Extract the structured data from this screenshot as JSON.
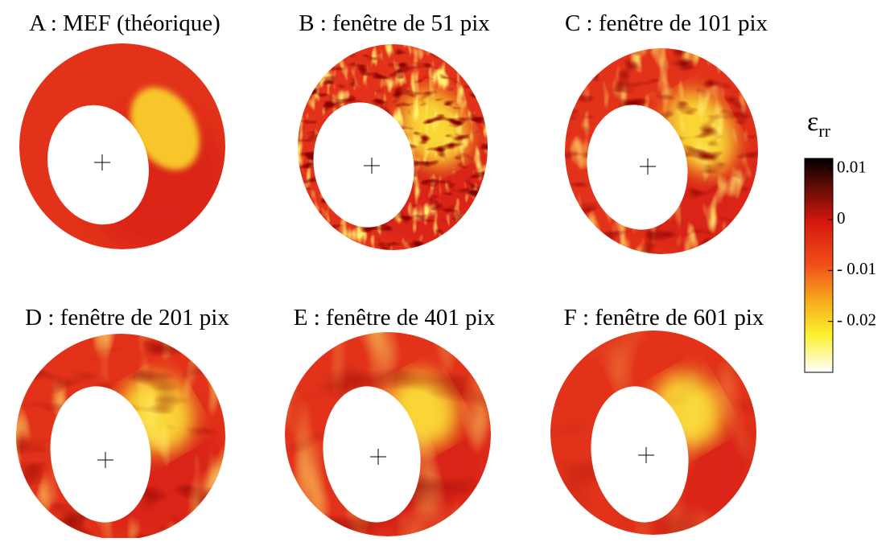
{
  "panels": [
    {
      "title": "A : MEF (théorique)"
    },
    {
      "title": "B : fenêtre de 51 pix"
    },
    {
      "title": "C : fenêtre de 101 pix"
    },
    {
      "title": "D : fenêtre de 201 pix"
    },
    {
      "title": "E : fenêtre de 401 pix"
    },
    {
      "title": "F : fenêtre de 601 pix"
    }
  ],
  "colorbar": {
    "symbol": "ε",
    "subscript": "rr",
    "lim": [
      -0.03,
      0.012
    ],
    "ticks": [
      0.01,
      0,
      {
        "value": -0.01,
        "label": "- 0.01"
      },
      {
        "value": -0.02,
        "label": "- 0.02"
      }
    ]
  }
}
